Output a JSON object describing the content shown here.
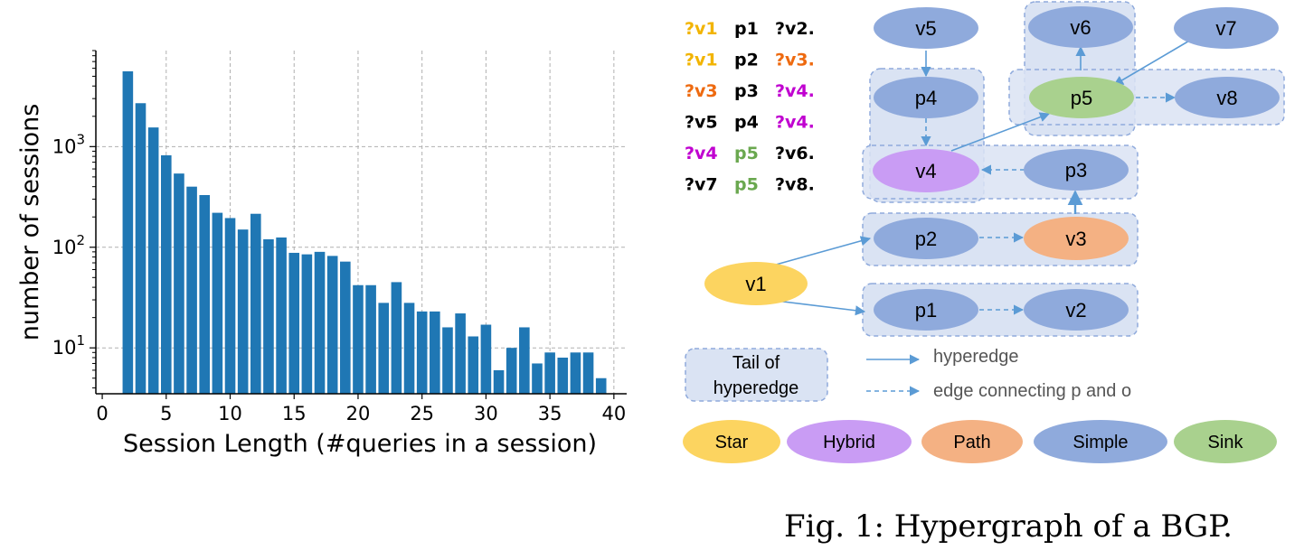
{
  "chart_data": {
    "type": "bar",
    "xlabel": "Session Length (#queries in a session)",
    "ylabel": "number of sessions",
    "yscale": "log",
    "xlim": [
      -0.5,
      41
    ],
    "ylim": [
      3.5,
      9000
    ],
    "xticks": [
      "0",
      "5",
      "10",
      "15",
      "20",
      "25",
      "30",
      "35",
      "40"
    ],
    "yticks": [
      {
        "base": "10",
        "exp": "1"
      },
      {
        "base": "10",
        "exp": "2"
      },
      {
        "base": "10",
        "exp": "3"
      }
    ],
    "grid": true,
    "bar_color": "#1f77b4",
    "x": [
      2,
      3,
      4,
      5,
      6,
      7,
      8,
      9,
      10,
      11,
      12,
      13,
      14,
      15,
      16,
      17,
      18,
      19,
      20,
      21,
      22,
      23,
      24,
      25,
      26,
      27,
      28,
      29,
      30,
      31,
      32,
      33,
      34,
      35,
      36,
      37,
      38,
      39
    ],
    "values": [
      5600,
      2700,
      1550,
      820,
      540,
      400,
      330,
      220,
      195,
      150,
      215,
      120,
      125,
      88,
      85,
      90,
      82,
      72,
      42,
      42,
      28,
      45,
      28,
      23,
      23,
      16,
      22,
      13,
      17,
      6,
      10,
      16,
      7,
      9,
      8,
      9,
      9,
      5
    ]
  },
  "diagram": {
    "triples": [
      [
        {
          "t": "?v1",
          "c": "#f2b400"
        },
        {
          "t": "p1",
          "c": "#000000"
        },
        {
          "t": "?v2.",
          "c": "#000000"
        }
      ],
      [
        {
          "t": "?v1",
          "c": "#f2b400"
        },
        {
          "t": "p2",
          "c": "#000000"
        },
        {
          "t": "?v3.",
          "c": "#ee6a10"
        }
      ],
      [
        {
          "t": "?v3",
          "c": "#ee6a10"
        },
        {
          "t": "p3",
          "c": "#000000"
        },
        {
          "t": "?v4.",
          "c": "#c000d0"
        }
      ],
      [
        {
          "t": "?v5",
          "c": "#000000"
        },
        {
          "t": "p4",
          "c": "#000000"
        },
        {
          "t": "?v4.",
          "c": "#c000d0"
        }
      ],
      [
        {
          "t": "?v4",
          "c": "#c000d0"
        },
        {
          "t": "p5",
          "c": "#6aa84f"
        },
        {
          "t": "?v6.",
          "c": "#000000"
        }
      ],
      [
        {
          "t": "?v7",
          "c": "#000000"
        },
        {
          "t": "p5",
          "c": "#6aa84f"
        },
        {
          "t": "?v8.",
          "c": "#000000"
        }
      ]
    ],
    "nodes": {
      "v5": "v5",
      "v6": "v6",
      "v7": "v7",
      "p4": "p4",
      "p5": "p5",
      "v8": "v8",
      "v4": "v4",
      "p3": "p3",
      "p2": "p2",
      "v3": "v3",
      "v1": "v1",
      "p1": "p1",
      "v2": "v2"
    },
    "legend": {
      "tail_line1": "Tail of",
      "tail_line2": "hyperedge",
      "hyperedge": "hyperedge",
      "po_edge": "edge connecting p and o"
    },
    "types": {
      "star": "Star",
      "hybrid": "Hybrid",
      "path": "Path",
      "simple": "Simple",
      "sink": "Sink"
    },
    "colors": {
      "star": "#fcd460",
      "hybrid": "#c99cf4",
      "path": "#f4b183",
      "simple": "#8faadc",
      "sink": "#a9d18e",
      "tail_fill": "#dae3f3",
      "edge": "#5b9bd5"
    }
  },
  "caption": "Fig. 1: Hypergraph of a BGP."
}
